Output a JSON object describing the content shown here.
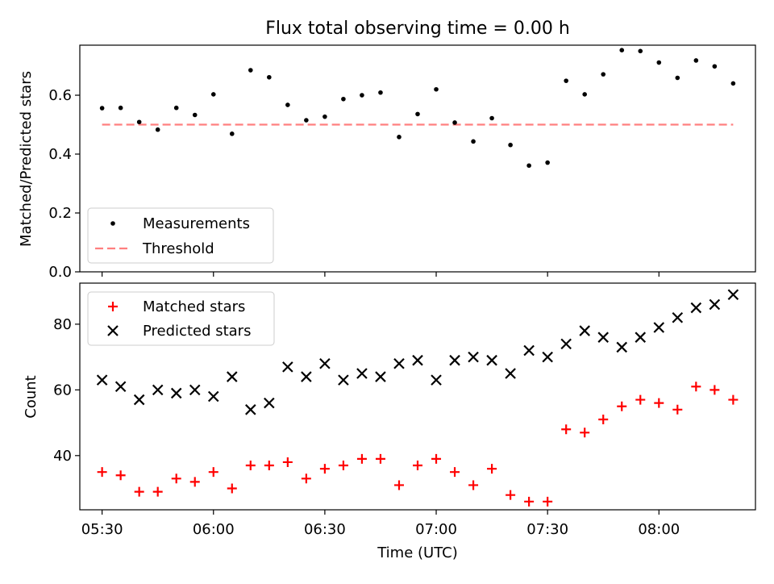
{
  "figure": {
    "title": "Flux total observing time = 0.00 h",
    "xlabel": "Time (UTC)"
  },
  "chart_data": [
    {
      "type": "scatter",
      "ylabel": "Matched/Predicted stars",
      "ylim": [
        0,
        0.77
      ],
      "yticks": [
        "0.0",
        "0.2",
        "0.4",
        "0.6"
      ],
      "ytick_values": [
        0,
        0.2,
        0.4,
        0.6
      ],
      "xlim": [
        "05:24",
        "08:26"
      ],
      "x": [
        "05:30",
        "05:35",
        "05:40",
        "05:45",
        "05:50",
        "05:55",
        "06:00",
        "06:05",
        "06:10",
        "06:15",
        "06:20",
        "06:25",
        "06:30",
        "06:35",
        "06:40",
        "06:45",
        "06:50",
        "06:55",
        "07:00",
        "07:05",
        "07:10",
        "07:15",
        "07:20",
        "07:25",
        "07:30",
        "07:35",
        "07:40",
        "07:45",
        "07:50",
        "07:55",
        "08:00",
        "08:05",
        "08:10",
        "08:15",
        "08:20"
      ],
      "series": [
        {
          "name": "Measurements",
          "color": "#000000",
          "marker": "dot",
          "values": [
            0.556,
            0.557,
            0.509,
            0.483,
            0.557,
            0.533,
            0.603,
            0.469,
            0.685,
            0.661,
            0.567,
            0.515,
            0.527,
            0.587,
            0.6,
            0.609,
            0.458,
            0.536,
            0.62,
            0.507,
            0.443,
            0.522,
            0.431,
            0.361,
            0.371,
            0.649,
            0.603,
            0.671,
            0.753,
            0.75,
            0.711,
            0.659,
            0.718,
            0.698,
            0.64
          ]
        },
        {
          "name": "Threshold",
          "color": "#ff7f7f",
          "style": "dashed",
          "values": [
            0.5,
            0.5,
            0.5,
            0.5,
            0.5,
            0.5,
            0.5,
            0.5,
            0.5,
            0.5,
            0.5,
            0.5,
            0.5,
            0.5,
            0.5,
            0.5,
            0.5,
            0.5,
            0.5,
            0.5,
            0.5,
            0.5,
            0.5,
            0.5,
            0.5,
            0.5,
            0.5,
            0.5,
            0.5,
            0.5,
            0.5,
            0.5,
            0.5,
            0.5,
            0.5
          ]
        }
      ],
      "legend": "lower-left",
      "grid": false
    },
    {
      "type": "scatter",
      "ylabel": "Count",
      "ylim": [
        23.5,
        92.5
      ],
      "yticks": [
        "40",
        "60",
        "80"
      ],
      "ytick_values": [
        40,
        60,
        80
      ],
      "xlim": [
        "05:24",
        "08:26"
      ],
      "xticks": [
        "05:30",
        "06:00",
        "06:30",
        "07:00",
        "07:30",
        "08:00"
      ],
      "x": [
        "05:30",
        "05:35",
        "05:40",
        "05:45",
        "05:50",
        "05:55",
        "06:00",
        "06:05",
        "06:10",
        "06:15",
        "06:20",
        "06:25",
        "06:30",
        "06:35",
        "06:40",
        "06:45",
        "06:50",
        "06:55",
        "07:00",
        "07:05",
        "07:10",
        "07:15",
        "07:20",
        "07:25",
        "07:30",
        "07:35",
        "07:40",
        "07:45",
        "07:50",
        "07:55",
        "08:00",
        "08:05",
        "08:10",
        "08:15",
        "08:20"
      ],
      "series": [
        {
          "name": "Matched stars",
          "color": "#ff0000",
          "marker": "plus",
          "values": [
            35,
            34,
            29,
            29,
            33,
            32,
            35,
            30,
            37,
            37,
            38,
            33,
            36,
            37,
            39,
            39,
            31,
            37,
            39,
            35,
            31,
            36,
            28,
            26,
            26,
            48,
            47,
            51,
            55,
            57,
            56,
            54,
            61,
            60,
            57
          ]
        },
        {
          "name": "Predicted stars",
          "color": "#000000",
          "marker": "x",
          "values": [
            63,
            61,
            57,
            60,
            59,
            60,
            58,
            64,
            54,
            56,
            67,
            64,
            68,
            63,
            65,
            64,
            68,
            69,
            63,
            69,
            70,
            69,
            65,
            72,
            70,
            74,
            78,
            76,
            73,
            76,
            79,
            82,
            85,
            86,
            89
          ]
        }
      ],
      "legend": "upper-left",
      "grid": false
    }
  ]
}
